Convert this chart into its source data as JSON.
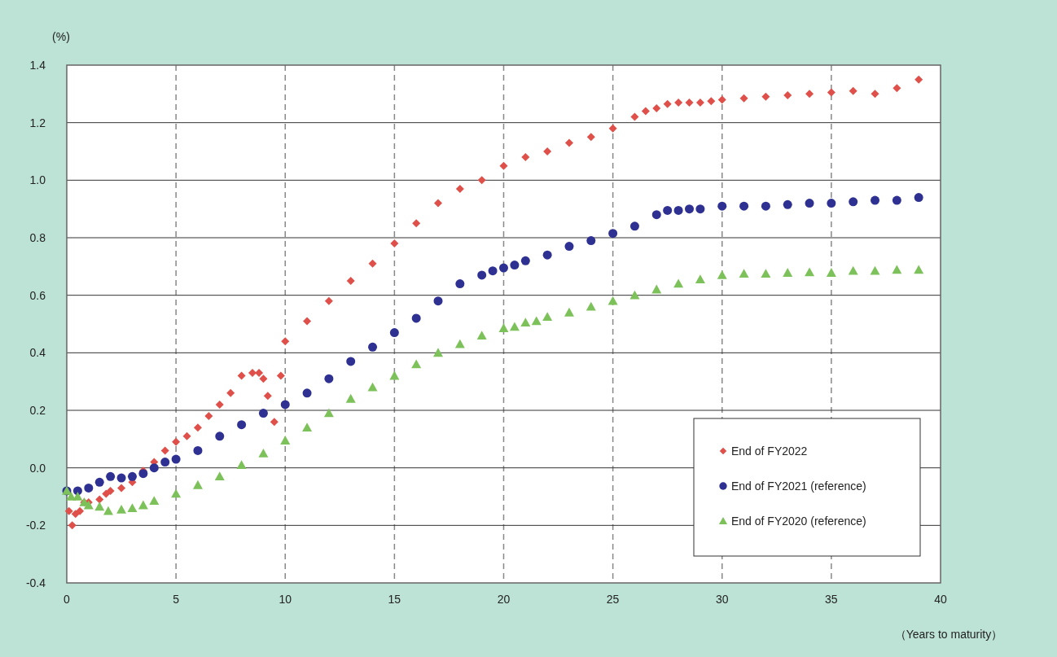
{
  "chart_data": {
    "type": "scatter",
    "ylabel": "(%)",
    "xlabel": "（Years to maturity）",
    "xlim": [
      0,
      40
    ],
    "xticks": [
      0,
      5,
      10,
      15,
      20,
      25,
      30,
      35,
      40
    ],
    "ylim": [
      -0.4,
      1.4
    ],
    "yticks": [
      {
        "value": -0.4,
        "label": "-0.4"
      },
      {
        "value": -0.2,
        "label": "-0.2"
      },
      {
        "value": 0,
        "label": "0.0"
      },
      {
        "value": 0.2,
        "label": "0.2"
      },
      {
        "value": 0.4,
        "label": "0.4"
      },
      {
        "value": 0.6,
        "label": "0.6"
      },
      {
        "value": 0.8,
        "label": "0.8"
      },
      {
        "value": 1.0,
        "label": "1.0"
      },
      {
        "value": 1.2,
        "label": "1.2"
      },
      {
        "value": 1.4,
        "label": "1.4"
      }
    ],
    "grid": true,
    "legend": "bottom right",
    "series": [
      {
        "name": "End of FY2022",
        "color": "#e0504a",
        "marker": "diamond",
        "x": [
          0.1,
          0.25,
          0.4,
          0.6,
          0.8,
          1.0,
          1.5,
          1.8,
          2.0,
          2.5,
          3.0,
          3.5,
          4.0,
          4.5,
          5.0,
          5.5,
          6.0,
          6.5,
          7.0,
          7.5,
          8.0,
          8.5,
          8.8,
          9.0,
          9.2,
          9.5,
          9.8,
          10,
          11,
          12,
          13,
          14,
          15,
          16,
          17,
          18,
          19,
          20,
          21,
          22,
          23,
          24,
          25,
          26,
          26.5,
          27,
          27.5,
          28,
          28.5,
          29,
          29.5,
          30,
          31,
          32,
          33,
          34,
          35,
          36,
          37,
          38,
          39
        ],
        "values": [
          -0.15,
          -0.2,
          -0.16,
          -0.15,
          -0.12,
          -0.12,
          -0.11,
          -0.09,
          -0.08,
          -0.07,
          -0.05,
          -0.01,
          0.02,
          0.06,
          0.09,
          0.11,
          0.14,
          0.18,
          0.22,
          0.26,
          0.32,
          0.33,
          0.33,
          0.31,
          0.25,
          0.16,
          0.32,
          0.44,
          0.51,
          0.58,
          0.65,
          0.71,
          0.78,
          0.85,
          0.92,
          0.97,
          1.0,
          1.05,
          1.08,
          1.1,
          1.13,
          1.15,
          1.18,
          1.22,
          1.24,
          1.25,
          1.265,
          1.27,
          1.27,
          1.27,
          1.275,
          1.28,
          1.285,
          1.29,
          1.295,
          1.3,
          1.305,
          1.31,
          1.3,
          1.32,
          1.35
        ]
      },
      {
        "name": "End of FY2021 (reference)",
        "color": "#2e3192",
        "marker": "circle",
        "x": [
          0,
          0.5,
          1.0,
          1.5,
          2.0,
          2.5,
          3.0,
          3.5,
          4.0,
          4.5,
          5,
          6,
          7,
          8,
          9,
          10,
          11,
          12,
          13,
          14,
          15,
          16,
          17,
          18,
          19,
          19.5,
          20,
          20.5,
          21,
          22,
          23,
          24,
          25,
          26,
          27,
          27.5,
          28,
          28.5,
          29,
          30,
          31,
          32,
          33,
          34,
          35,
          36,
          37,
          38,
          39
        ],
        "values": [
          -0.08,
          -0.08,
          -0.07,
          -0.05,
          -0.03,
          -0.035,
          -0.03,
          -0.02,
          0.0,
          0.02,
          0.03,
          0.06,
          0.11,
          0.15,
          0.19,
          0.22,
          0.26,
          0.31,
          0.37,
          0.42,
          0.47,
          0.52,
          0.58,
          0.64,
          0.67,
          0.685,
          0.695,
          0.705,
          0.72,
          0.74,
          0.77,
          0.79,
          0.815,
          0.84,
          0.88,
          0.895,
          0.895,
          0.9,
          0.9,
          0.91,
          0.91,
          0.91,
          0.915,
          0.92,
          0.92,
          0.925,
          0.93,
          0.93,
          0.94
        ]
      },
      {
        "name": "End of FY2020 (reference)",
        "color": "#7dc15a",
        "marker": "triangle",
        "x": [
          0,
          0.2,
          0.5,
          0.8,
          1.0,
          1.5,
          1.9,
          2.5,
          3.0,
          3.5,
          4.0,
          5,
          6,
          7,
          8,
          9,
          10,
          11,
          12,
          13,
          14,
          15,
          16,
          17,
          18,
          19,
          20,
          20.5,
          21,
          21.5,
          22,
          23,
          24,
          25,
          26,
          27,
          28,
          29,
          30,
          31,
          32,
          33,
          34,
          35,
          36,
          37,
          38,
          39
        ],
        "values": [
          -0.08,
          -0.1,
          -0.1,
          -0.12,
          -0.13,
          -0.135,
          -0.15,
          -0.145,
          -0.14,
          -0.13,
          -0.115,
          -0.09,
          -0.06,
          -0.03,
          0.01,
          0.05,
          0.095,
          0.14,
          0.19,
          0.24,
          0.28,
          0.32,
          0.36,
          0.4,
          0.43,
          0.46,
          0.485,
          0.49,
          0.505,
          0.51,
          0.525,
          0.54,
          0.56,
          0.58,
          0.6,
          0.62,
          0.64,
          0.655,
          0.67,
          0.675,
          0.675,
          0.678,
          0.68,
          0.678,
          0.685,
          0.685,
          0.688,
          0.688
        ]
      }
    ]
  }
}
